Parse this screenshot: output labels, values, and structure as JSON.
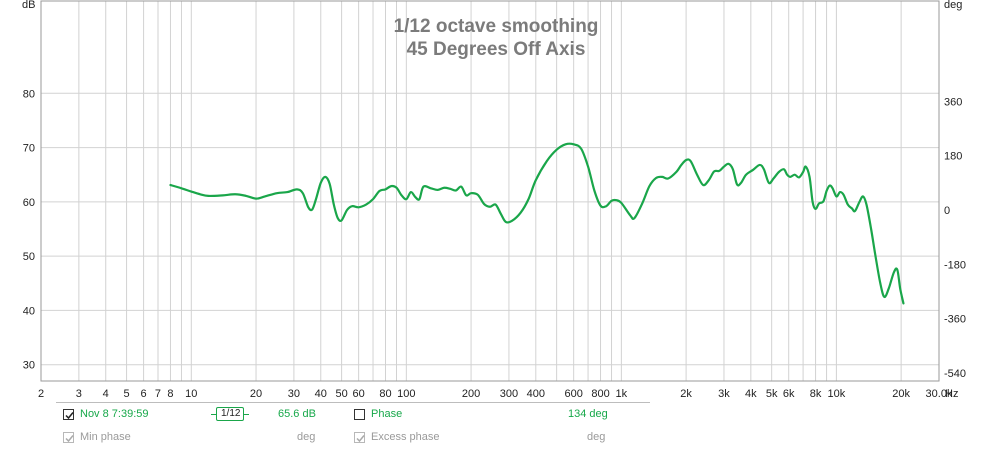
{
  "chart_data": {
    "type": "line",
    "title": "1/12 octave smoothing",
    "subtitle": "45 Degrees Off Axis",
    "ylabel_left": "dB",
    "ylabel_right": "deg",
    "xunit": "Hz",
    "xscale": "log",
    "xlim": [
      2,
      30000
    ],
    "ylim": [
      27,
      97
    ],
    "ylim_right": [
      -567,
      693
    ],
    "grid": true,
    "x_ticks": [
      {
        "v": 2,
        "label": "2"
      },
      {
        "v": 3,
        "label": "3"
      },
      {
        "v": 4,
        "label": "4"
      },
      {
        "v": 5,
        "label": "5"
      },
      {
        "v": 6,
        "label": "6"
      },
      {
        "v": 7,
        "label": "7"
      },
      {
        "v": 8,
        "label": "8"
      },
      {
        "v": 10,
        "label": "10"
      },
      {
        "v": 20,
        "label": "20"
      },
      {
        "v": 30,
        "label": "30"
      },
      {
        "v": 40,
        "label": "40"
      },
      {
        "v": 50,
        "label": "50"
      },
      {
        "v": 60,
        "label": "60"
      },
      {
        "v": 80,
        "label": "80"
      },
      {
        "v": 100,
        "label": "100"
      },
      {
        "v": 200,
        "label": "200"
      },
      {
        "v": 300,
        "label": "300"
      },
      {
        "v": 400,
        "label": "400"
      },
      {
        "v": 600,
        "label": "600"
      },
      {
        "v": 800,
        "label": "800"
      },
      {
        "v": 1000,
        "label": "1k"
      },
      {
        "v": 2000,
        "label": "2k"
      },
      {
        "v": 3000,
        "label": "3k"
      },
      {
        "v": 4000,
        "label": "4k"
      },
      {
        "v": 5000,
        "label": "5k"
      },
      {
        "v": 6000,
        "label": "6k"
      },
      {
        "v": 8000,
        "label": "8k"
      },
      {
        "v": 10000,
        "label": "10k"
      },
      {
        "v": 20000,
        "label": "20k"
      },
      {
        "v": 30000,
        "label": "30.0k"
      }
    ],
    "y_ticks_left": [
      30,
      40,
      50,
      60,
      70,
      80
    ],
    "y_ticks_right": [
      -540,
      -360,
      -180,
      0,
      180,
      360
    ],
    "series": [
      {
        "name": "Nov 8 7:39:59",
        "color": "#1aa64a",
        "points": [
          [
            8,
            63.1
          ],
          [
            9,
            62.5
          ],
          [
            10,
            61.9
          ],
          [
            11,
            61.4
          ],
          [
            12,
            61.1
          ],
          [
            14,
            61.2
          ],
          [
            16,
            61.4
          ],
          [
            18,
            61.1
          ],
          [
            20,
            60.6
          ],
          [
            22,
            61.0
          ],
          [
            25,
            61.6
          ],
          [
            28,
            61.8
          ],
          [
            31,
            62.3
          ],
          [
            33,
            61.6
          ],
          [
            35,
            59.0
          ],
          [
            36.5,
            58.6
          ],
          [
            38,
            60.5
          ],
          [
            40,
            63.5
          ],
          [
            42,
            64.6
          ],
          [
            44,
            63.3
          ],
          [
            46,
            59.5
          ],
          [
            48,
            57.0
          ],
          [
            50,
            56.6
          ],
          [
            53,
            58.5
          ],
          [
            56,
            59.2
          ],
          [
            60,
            59.0
          ],
          [
            65,
            59.5
          ],
          [
            70,
            60.5
          ],
          [
            75,
            62.0
          ],
          [
            80,
            62.3
          ],
          [
            85,
            62.9
          ],
          [
            90,
            62.6
          ],
          [
            95,
            61.2
          ],
          [
            100,
            60.5
          ],
          [
            105,
            61.8
          ],
          [
            110,
            60.9
          ],
          [
            115,
            60.5
          ],
          [
            120,
            62.8
          ],
          [
            130,
            62.5
          ],
          [
            140,
            62.2
          ],
          [
            150,
            62.6
          ],
          [
            160,
            62.4
          ],
          [
            170,
            62.1
          ],
          [
            180,
            62.8
          ],
          [
            190,
            61.2
          ],
          [
            200,
            61.6
          ],
          [
            215,
            61.3
          ],
          [
            230,
            59.6
          ],
          [
            245,
            59.1
          ],
          [
            260,
            59.5
          ],
          [
            275,
            57.8
          ],
          [
            290,
            56.3
          ],
          [
            310,
            56.5
          ],
          [
            340,
            58.0
          ],
          [
            370,
            60.5
          ],
          [
            400,
            64.0
          ],
          [
            450,
            67.5
          ],
          [
            500,
            69.6
          ],
          [
            550,
            70.6
          ],
          [
            600,
            70.6
          ],
          [
            650,
            69.8
          ],
          [
            700,
            66.5
          ],
          [
            750,
            62.0
          ],
          [
            800,
            59.3
          ],
          [
            850,
            59.2
          ],
          [
            900,
            60.2
          ],
          [
            950,
            60.3
          ],
          [
            1000,
            59.8
          ],
          [
            1100,
            57.5
          ],
          [
            1150,
            57.0
          ],
          [
            1250,
            59.7
          ],
          [
            1350,
            62.9
          ],
          [
            1450,
            64.4
          ],
          [
            1550,
            64.6
          ],
          [
            1650,
            64.3
          ],
          [
            1800,
            65.5
          ],
          [
            1900,
            66.8
          ],
          [
            2000,
            67.7
          ],
          [
            2100,
            67.5
          ],
          [
            2250,
            65.0
          ],
          [
            2400,
            63.1
          ],
          [
            2550,
            64.0
          ],
          [
            2700,
            65.6
          ],
          [
            2850,
            65.7
          ],
          [
            3000,
            66.5
          ],
          [
            3150,
            67.0
          ],
          [
            3300,
            66.0
          ],
          [
            3450,
            63.2
          ],
          [
            3600,
            63.5
          ],
          [
            3800,
            65.0
          ],
          [
            4100,
            65.9
          ],
          [
            4400,
            66.8
          ],
          [
            4600,
            66.0
          ],
          [
            4850,
            63.5
          ],
          [
            5100,
            64.3
          ],
          [
            5400,
            65.5
          ],
          [
            5700,
            66.0
          ],
          [
            5900,
            65.0
          ],
          [
            6100,
            64.6
          ],
          [
            6400,
            65.0
          ],
          [
            6700,
            64.5
          ],
          [
            7000,
            65.5
          ],
          [
            7200,
            66.5
          ],
          [
            7500,
            64.6
          ],
          [
            7750,
            60.0
          ],
          [
            8000,
            58.7
          ],
          [
            8300,
            59.7
          ],
          [
            8700,
            60.1
          ],
          [
            9000,
            62.0
          ],
          [
            9300,
            63.0
          ],
          [
            9600,
            62.5
          ],
          [
            10000,
            61.0
          ],
          [
            10400,
            61.8
          ],
          [
            10800,
            61.3
          ],
          [
            11300,
            59.5
          ],
          [
            11800,
            58.8
          ],
          [
            12200,
            58.3
          ],
          [
            12800,
            60.0
          ],
          [
            13300,
            61.0
          ],
          [
            13800,
            59.5
          ],
          [
            14500,
            55.0
          ],
          [
            15200,
            50.0
          ],
          [
            16000,
            45.0
          ],
          [
            16700,
            42.5
          ],
          [
            17500,
            44.0
          ],
          [
            18500,
            47.0
          ],
          [
            19200,
            47.5
          ],
          [
            19800,
            44.0
          ],
          [
            20500,
            41.3
          ]
        ]
      }
    ]
  },
  "legend": {
    "trace_label": "Nov 8 7:39:59",
    "smoothing_label": "1/12",
    "value_db": "65.6 dB",
    "phase_label": "Phase",
    "phase_value": "134 deg",
    "min_phase_label": "Min phase",
    "min_phase_unit": "deg",
    "excess_phase_label": "Excess phase",
    "excess_phase_unit": "deg"
  }
}
